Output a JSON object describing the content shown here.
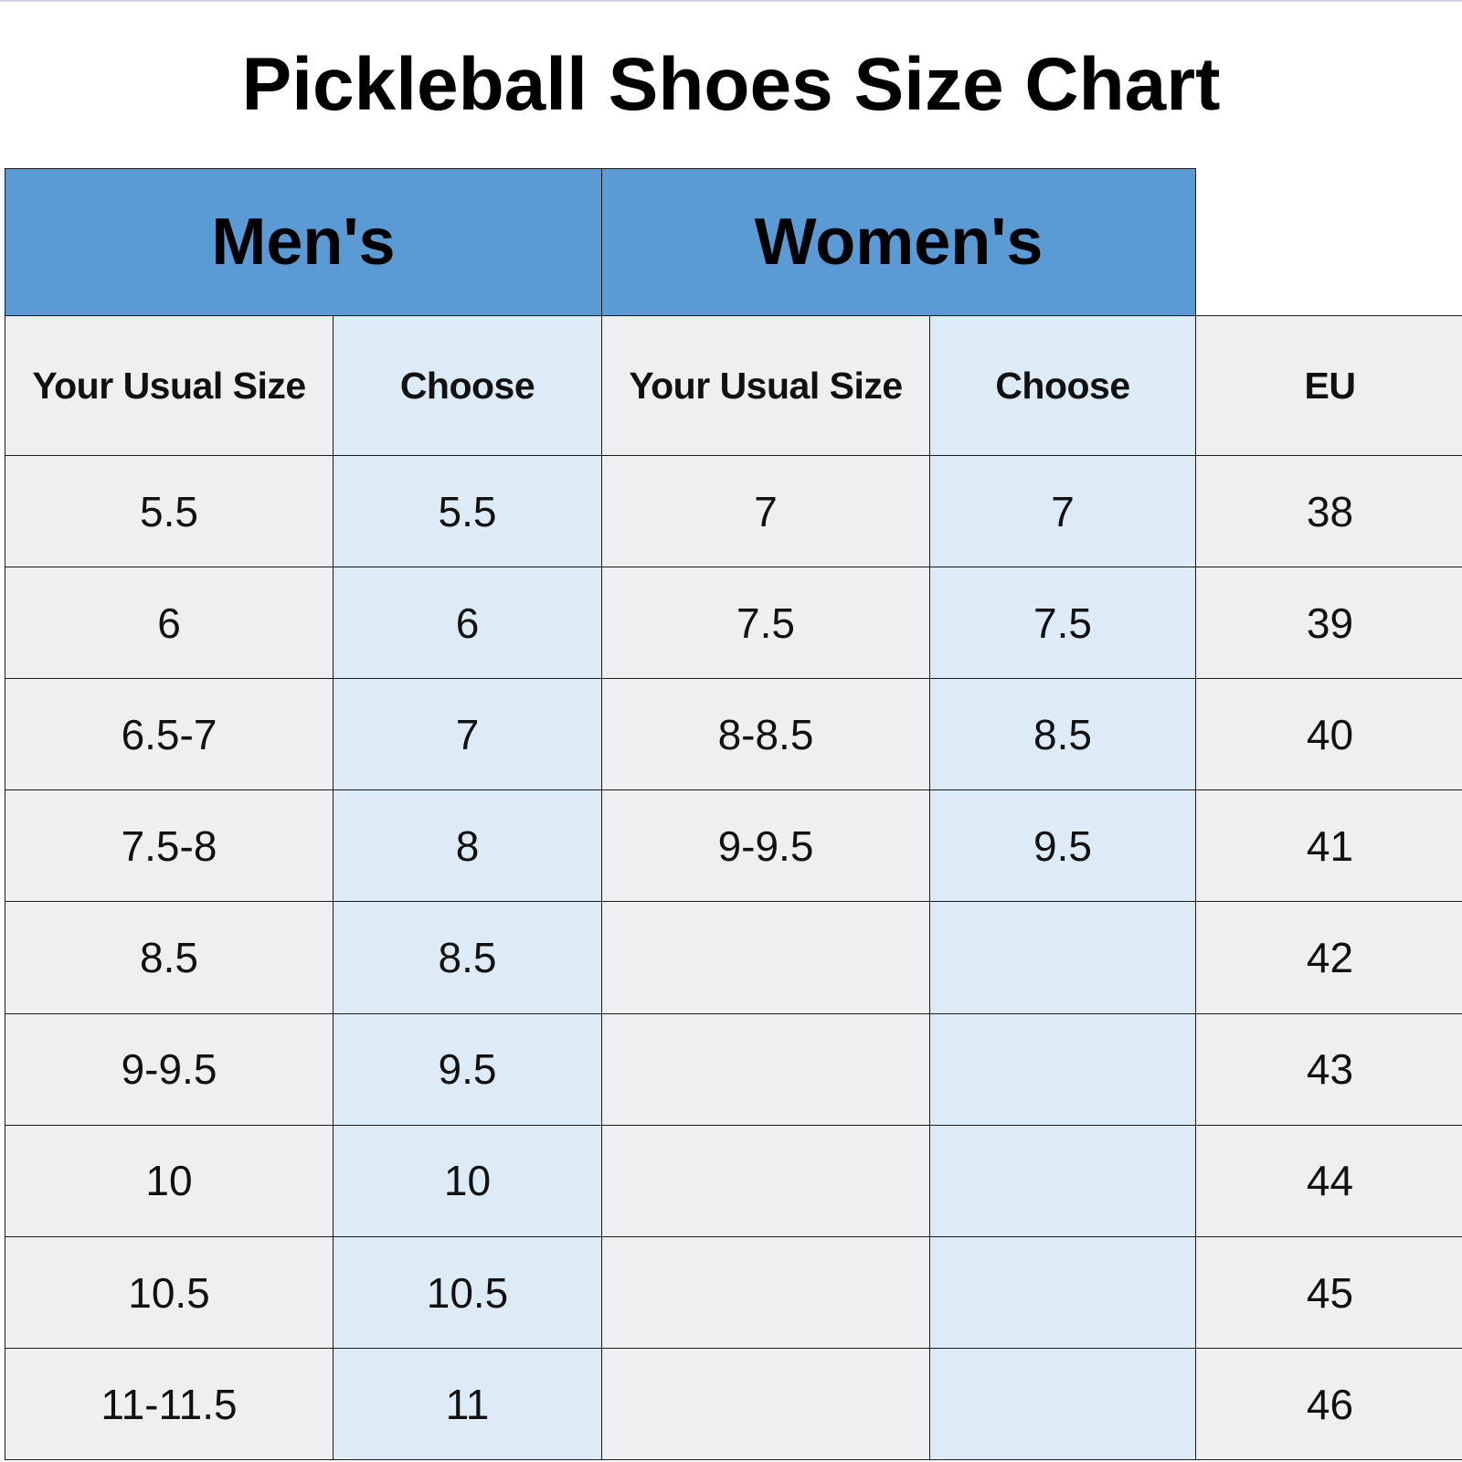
{
  "title": "Pickleball Shoes Size Chart",
  "table": {
    "group_headers": [
      "Men's",
      "Women's"
    ],
    "column_headers": [
      "Your Usual Size",
      "Choose",
      "Your Usual Size",
      "Choose",
      "EU"
    ],
    "rows": [
      [
        "5.5",
        "5.5",
        "7",
        "7",
        "38"
      ],
      [
        "6",
        "6",
        "7.5",
        "7.5",
        "39"
      ],
      [
        "6.5-7",
        "7",
        "8-8.5",
        "8.5",
        "40"
      ],
      [
        "7.5-8",
        "8",
        "9-9.5",
        "9.5",
        "41"
      ],
      [
        "8.5",
        "8.5",
        null,
        null,
        "42"
      ],
      [
        "9-9.5",
        "9.5",
        null,
        null,
        "43"
      ],
      [
        "10",
        "10",
        null,
        null,
        "44"
      ],
      [
        "10.5",
        "10.5",
        null,
        null,
        "45"
      ],
      [
        "11-11.5",
        "11",
        null,
        null,
        "46"
      ]
    ]
  }
}
